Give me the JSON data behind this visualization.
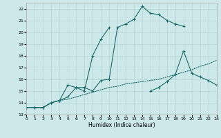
{
  "xlabel": "Humidex (Indice chaleur)",
  "bg_color": "#cce8e8",
  "grid_color": "#b8d8d8",
  "line_color": "#1a6b6b",
  "xlim": [
    0,
    23
  ],
  "ylim": [
    13,
    22.5
  ],
  "xticks": [
    0,
    1,
    2,
    3,
    4,
    5,
    6,
    7,
    8,
    9,
    10,
    11,
    12,
    13,
    14,
    15,
    16,
    17,
    18,
    19,
    20,
    21,
    22,
    23
  ],
  "yticks": [
    13,
    14,
    15,
    16,
    17,
    18,
    19,
    20,
    21,
    22
  ],
  "series": [
    {
      "x": [
        0,
        1,
        2,
        3,
        4,
        5,
        6,
        7,
        8,
        9,
        10,
        11,
        12,
        13,
        14,
        15,
        16,
        17,
        18,
        19,
        20,
        21,
        22,
        23
      ],
      "y": [
        13.6,
        13.6,
        13.6,
        14.0,
        14.2,
        14.3,
        14.5,
        14.7,
        14.9,
        15.1,
        15.3,
        15.4,
        15.6,
        15.7,
        15.8,
        15.9,
        16.0,
        16.2,
        16.4,
        16.6,
        16.8,
        17.1,
        17.3,
        17.6
      ],
      "marker": false
    },
    {
      "x": [
        0,
        1,
        2,
        3,
        4,
        5,
        6,
        7,
        8,
        9,
        10,
        11,
        12,
        13,
        14,
        15,
        16,
        17,
        18,
        19
      ],
      "y": [
        13.6,
        13.6,
        13.6,
        14.0,
        14.2,
        14.5,
        15.3,
        15.3,
        15.0,
        15.9,
        16.0,
        20.4,
        20.7,
        21.1,
        22.2,
        21.6,
        21.5,
        21.0,
        20.7,
        20.5
      ],
      "marker": true
    },
    {
      "x": [
        0,
        1,
        2,
        3,
        4,
        5,
        6,
        7,
        8,
        9,
        10
      ],
      "y": [
        13.6,
        13.6,
        13.6,
        14.0,
        14.2,
        15.5,
        15.3,
        15.0,
        18.0,
        19.4,
        20.4
      ],
      "marker": true
    },
    {
      "x": [
        15,
        16,
        17,
        18,
        19,
        20,
        21,
        22,
        23
      ],
      "y": [
        15.0,
        15.3,
        15.8,
        16.4,
        18.4,
        16.5,
        16.2,
        15.9,
        15.5
      ],
      "marker": true
    }
  ]
}
